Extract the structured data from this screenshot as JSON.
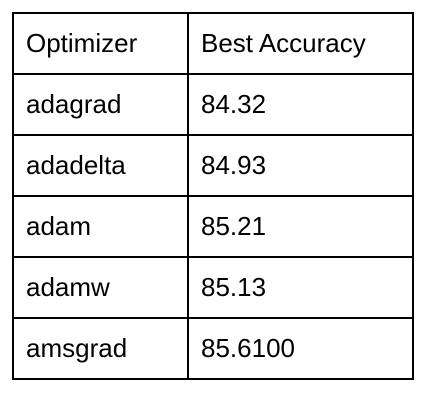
{
  "table": {
    "headers": [
      "Optimizer",
      "Best Accuracy"
    ],
    "rows": [
      [
        "adagrad",
        "84.32"
      ],
      [
        "adadelta",
        "84.93"
      ],
      [
        "adam",
        "85.21"
      ],
      [
        "adamw",
        "85.13"
      ],
      [
        "amsgrad",
        "85.6100"
      ]
    ]
  }
}
